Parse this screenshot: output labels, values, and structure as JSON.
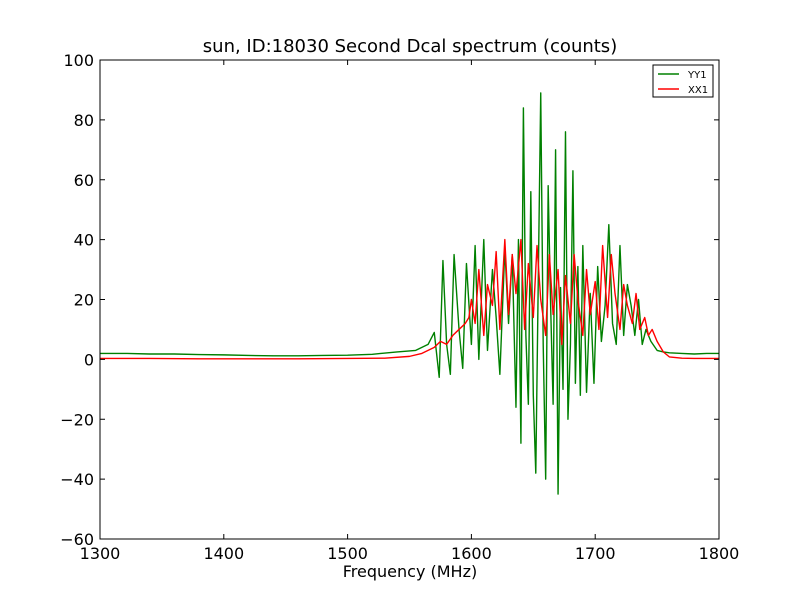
{
  "chart_data": {
    "type": "line",
    "title": "sun, ID:18030 Second Dcal spectrum (counts)",
    "xlabel": "Frequency (MHz)",
    "ylabel": "",
    "xlim": [
      1300,
      1800
    ],
    "ylim": [
      -60,
      100
    ],
    "x_ticks": [
      1300,
      1400,
      1500,
      1600,
      1700,
      1800
    ],
    "y_ticks": [
      -60,
      -40,
      -20,
      0,
      20,
      40,
      60,
      80,
      100
    ],
    "x_tick_labels": [
      "1300",
      "1400",
      "1500",
      "1600",
      "1700",
      "1800"
    ],
    "y_tick_labels": [
      "−60",
      "−40",
      "−20",
      "0",
      "20",
      "40",
      "60",
      "80",
      "100"
    ],
    "grid": false,
    "legend_position": "top-right",
    "series": [
      {
        "name": "YY1",
        "color": "#008000",
        "x": [
          1300,
          1320,
          1340,
          1360,
          1380,
          1400,
          1420,
          1440,
          1460,
          1480,
          1500,
          1520,
          1540,
          1555,
          1565,
          1570,
          1574,
          1577,
          1580,
          1583,
          1586,
          1590,
          1593,
          1596,
          1600,
          1603,
          1606,
          1610,
          1613,
          1617,
          1620,
          1623,
          1627,
          1630,
          1633,
          1636,
          1638,
          1640,
          1642,
          1644,
          1646,
          1648,
          1650,
          1652,
          1654,
          1656,
          1658,
          1660,
          1662,
          1664,
          1666,
          1668,
          1670,
          1672,
          1674,
          1676,
          1678,
          1680,
          1682,
          1684,
          1686,
          1688,
          1690,
          1693,
          1696,
          1699,
          1702,
          1705,
          1708,
          1711,
          1714,
          1717,
          1720,
          1723,
          1726,
          1729,
          1732,
          1735,
          1738,
          1741,
          1745,
          1750,
          1755,
          1760,
          1770,
          1780,
          1790,
          1800
        ],
        "y": [
          2.0,
          2.0,
          1.8,
          1.8,
          1.6,
          1.5,
          1.3,
          1.2,
          1.2,
          1.3,
          1.4,
          1.7,
          2.5,
          3.0,
          5.0,
          9.0,
          -6.0,
          33.0,
          5.0,
          -5.0,
          35.0,
          10.0,
          -3.0,
          32.0,
          5.0,
          38.0,
          0.0,
          40.0,
          3.0,
          30.0,
          14.0,
          -5.0,
          37.0,
          12.0,
          35.0,
          -16.0,
          40.0,
          -28.0,
          84.0,
          8.0,
          -15.0,
          56.0,
          -12.0,
          -38.0,
          26.0,
          89.0,
          5.0,
          -40.0,
          58.0,
          18.0,
          -15.0,
          70.0,
          -45.0,
          24.0,
          -10.0,
          76.0,
          -20.0,
          5.0,
          63.0,
          -8.0,
          31.0,
          -12.0,
          38.0,
          -11.0,
          22.0,
          -8.0,
          31.0,
          6.0,
          18.0,
          45.0,
          12.0,
          5.0,
          38.0,
          8.0,
          25.0,
          18.0,
          8.0,
          20.0,
          5.0,
          10.0,
          6.0,
          3.0,
          2.5,
          2.2,
          2.0,
          1.8,
          2.0,
          2.0
        ]
      },
      {
        "name": "XX1",
        "color": "#ff0000",
        "x": [
          1300,
          1340,
          1380,
          1420,
          1460,
          1500,
          1530,
          1550,
          1560,
          1565,
          1570,
          1575,
          1580,
          1585,
          1590,
          1595,
          1598,
          1600,
          1603,
          1606,
          1610,
          1613,
          1617,
          1620,
          1623,
          1627,
          1630,
          1633,
          1636,
          1640,
          1643,
          1646,
          1650,
          1653,
          1656,
          1660,
          1663,
          1666,
          1670,
          1673,
          1676,
          1680,
          1683,
          1686,
          1690,
          1693,
          1696,
          1700,
          1703,
          1706,
          1710,
          1713,
          1716,
          1720,
          1723,
          1726,
          1730,
          1733,
          1736,
          1740,
          1743,
          1746,
          1750,
          1755,
          1760,
          1770,
          1780,
          1800
        ],
        "y": [
          0.3,
          0.3,
          0.2,
          0.2,
          0.2,
          0.3,
          0.4,
          1.0,
          2.0,
          3.0,
          4.0,
          6.0,
          5.0,
          8.0,
          10.0,
          12.0,
          14.0,
          20.0,
          12.0,
          30.0,
          8.0,
          25.0,
          18.0,
          36.0,
          10.0,
          40.0,
          15.0,
          35.0,
          22.0,
          40.0,
          10.0,
          32.0,
          14.0,
          38.0,
          20.0,
          8.0,
          35.0,
          15.0,
          30.0,
          5.0,
          28.0,
          12.0,
          35.0,
          20.0,
          8.0,
          30.0,
          15.0,
          26.0,
          10.0,
          38.0,
          14.0,
          35.0,
          22.0,
          10.0,
          25.0,
          18.0,
          12.0,
          22.0,
          10.0,
          14.0,
          8.0,
          10.0,
          6.0,
          2.5,
          0.8,
          0.4,
          0.3,
          0.3
        ]
      }
    ]
  }
}
